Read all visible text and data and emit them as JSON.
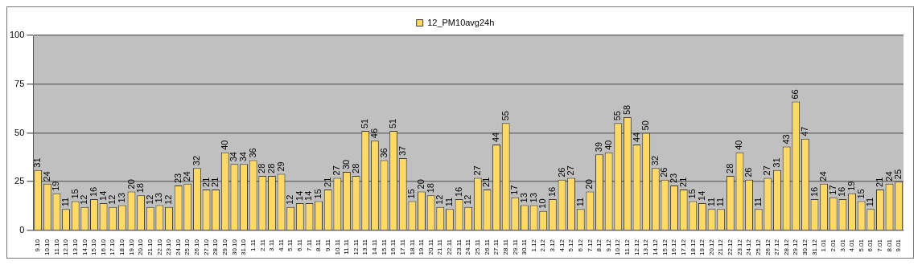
{
  "chart_data": {
    "type": "bar",
    "categories": [
      "9.10",
      "10.10",
      "11.10",
      "12.10",
      "13.10",
      "14.10",
      "15.10",
      "16.10",
      "17.10",
      "18.10",
      "19.10",
      "20.10",
      "21.10",
      "22.10",
      "23.10",
      "24.10",
      "25.10",
      "26.10",
      "27.10",
      "28.10",
      "29.10",
      "30.10",
      "31.10",
      "1.11",
      "2.11",
      "3.11",
      "4.11",
      "5.11",
      "6.11",
      "7.11",
      "8.11",
      "9.11",
      "10.11",
      "11.11",
      "12.11",
      "13.11",
      "14.11",
      "15.11",
      "16.11",
      "17.11",
      "18.11",
      "19.11",
      "20.11",
      "21.11",
      "22.11",
      "23.11",
      "24.11",
      "25.11",
      "26.11",
      "27.11",
      "28.11",
      "29.11",
      "30.11",
      "1.12",
      "2.12",
      "3.12",
      "4.12",
      "5.12",
      "6.12",
      "7.12",
      "8.12",
      "9.12",
      "10.12",
      "11.12",
      "12.12",
      "13.12",
      "14.12",
      "15.12",
      "16.12",
      "17.12",
      "18.12",
      "19.12",
      "20.12",
      "21.12",
      "22.12",
      "23.12",
      "24.12",
      "25.12",
      "26.12",
      "27.12",
      "28.12",
      "29.12",
      "30.12",
      "31.12",
      "1.01",
      "2.01",
      "3.01",
      "4.01",
      "5.01",
      "6.01",
      "7.01",
      "8.01",
      "9.01"
    ],
    "series": [
      {
        "name": "12_PM10avg24h",
        "color": "#ffd966",
        "values": [
          31,
          24,
          19,
          11,
          15,
          12,
          16,
          14,
          12,
          13,
          20,
          18,
          12,
          13,
          12,
          23,
          24,
          32,
          21,
          21,
          40,
          34,
          34,
          36,
          28,
          28,
          29,
          12,
          14,
          14,
          15,
          21,
          27,
          30,
          28,
          51,
          46,
          36,
          51,
          37,
          15,
          20,
          18,
          12,
          11,
          16,
          12,
          27,
          21,
          44,
          55,
          17,
          13,
          13,
          10,
          16,
          26,
          27,
          11,
          20,
          39,
          40,
          55,
          58,
          44,
          50,
          32,
          26,
          23,
          21,
          15,
          14,
          11,
          11,
          28,
          40,
          26,
          11,
          27,
          31,
          43,
          66,
          47,
          16,
          24,
          17,
          16,
          19,
          15,
          11,
          21,
          24,
          25
        ]
      }
    ],
    "ylim": [
      0,
      100
    ],
    "yticks": [
      0,
      25,
      50,
      75,
      100
    ],
    "grid": "y",
    "legend": "top",
    "data_labels": true
  }
}
